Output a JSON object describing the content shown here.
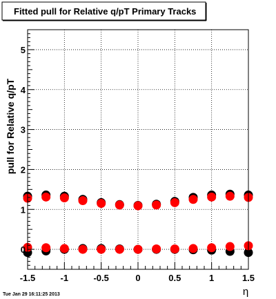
{
  "title": "Fitted pull for Relative q/pT  Primary Tracks",
  "footer": "Tue Jan 29 16:11:25 2013",
  "chart_data": {
    "type": "scatter",
    "title": "Fitted pull for Relative q/pT  Primary Tracks",
    "xlabel": "η",
    "ylabel": "pull for Relative q/pT",
    "xlim": [
      -1.5,
      1.5
    ],
    "ylim": [
      -0.5,
      5.5
    ],
    "xticks": [
      -1.5,
      -1,
      -0.5,
      0,
      0.5,
      1,
      1.5
    ],
    "xtick_labels": [
      "-1.5",
      "-1",
      "-0.5",
      "0",
      "0.5",
      "1",
      "1.5"
    ],
    "yticks": [
      0,
      1,
      2,
      3,
      4,
      5
    ],
    "ytick_labels": [
      "0",
      "1",
      "2",
      "3",
      "4",
      "5"
    ],
    "grid": true,
    "legend": "none",
    "series": [
      {
        "color": "#000000",
        "points": [
          {
            "x": -1.5,
            "y": 1.33
          },
          {
            "x": -1.25,
            "y": 1.36
          },
          {
            "x": -1.0,
            "y": 1.33
          },
          {
            "x": -0.75,
            "y": 1.25
          },
          {
            "x": -0.5,
            "y": 1.17
          },
          {
            "x": -0.25,
            "y": 1.12
          },
          {
            "x": 0.0,
            "y": 1.1
          },
          {
            "x": 0.25,
            "y": 1.13
          },
          {
            "x": 0.5,
            "y": 1.2
          },
          {
            "x": 0.75,
            "y": 1.3
          },
          {
            "x": 1.0,
            "y": 1.36
          },
          {
            "x": 1.25,
            "y": 1.38
          },
          {
            "x": 1.5,
            "y": 1.36
          },
          {
            "x": -1.5,
            "y": -0.08
          },
          {
            "x": -1.25,
            "y": -0.04
          },
          {
            "x": -1.0,
            "y": 0.0
          },
          {
            "x": -0.75,
            "y": 0.02
          },
          {
            "x": -0.5,
            "y": 0.02
          },
          {
            "x": -0.25,
            "y": 0.01
          },
          {
            "x": 0.0,
            "y": 0.0
          },
          {
            "x": 0.25,
            "y": 0.0
          },
          {
            "x": 0.5,
            "y": 0.0
          },
          {
            "x": 0.75,
            "y": -0.01
          },
          {
            "x": 1.0,
            "y": -0.02
          },
          {
            "x": 1.25,
            "y": -0.05
          },
          {
            "x": 1.5,
            "y": -0.08
          }
        ]
      },
      {
        "color": "#ff0000",
        "points": [
          {
            "x": -1.5,
            "y": 1.28
          },
          {
            "x": -1.25,
            "y": 1.31
          },
          {
            "x": -1.0,
            "y": 1.29
          },
          {
            "x": -0.75,
            "y": 1.22
          },
          {
            "x": -0.5,
            "y": 1.15
          },
          {
            "x": -0.25,
            "y": 1.11
          },
          {
            "x": 0.0,
            "y": 1.09
          },
          {
            "x": 0.25,
            "y": 1.11
          },
          {
            "x": 0.5,
            "y": 1.17
          },
          {
            "x": 0.75,
            "y": 1.25
          },
          {
            "x": 1.0,
            "y": 1.31
          },
          {
            "x": 1.25,
            "y": 1.33
          },
          {
            "x": 1.5,
            "y": 1.3
          },
          {
            "x": -1.5,
            "y": 0.05
          },
          {
            "x": -1.25,
            "y": 0.04
          },
          {
            "x": -1.0,
            "y": 0.02
          },
          {
            "x": -0.75,
            "y": 0.0
          },
          {
            "x": -0.5,
            "y": 0.0
          },
          {
            "x": -0.25,
            "y": 0.0
          },
          {
            "x": 0.0,
            "y": 0.0
          },
          {
            "x": 0.25,
            "y": 0.01
          },
          {
            "x": 0.5,
            "y": 0.01
          },
          {
            "x": 0.75,
            "y": 0.02
          },
          {
            "x": 1.0,
            "y": 0.04
          },
          {
            "x": 1.25,
            "y": 0.07
          },
          {
            "x": 1.5,
            "y": 0.09
          }
        ]
      }
    ]
  }
}
